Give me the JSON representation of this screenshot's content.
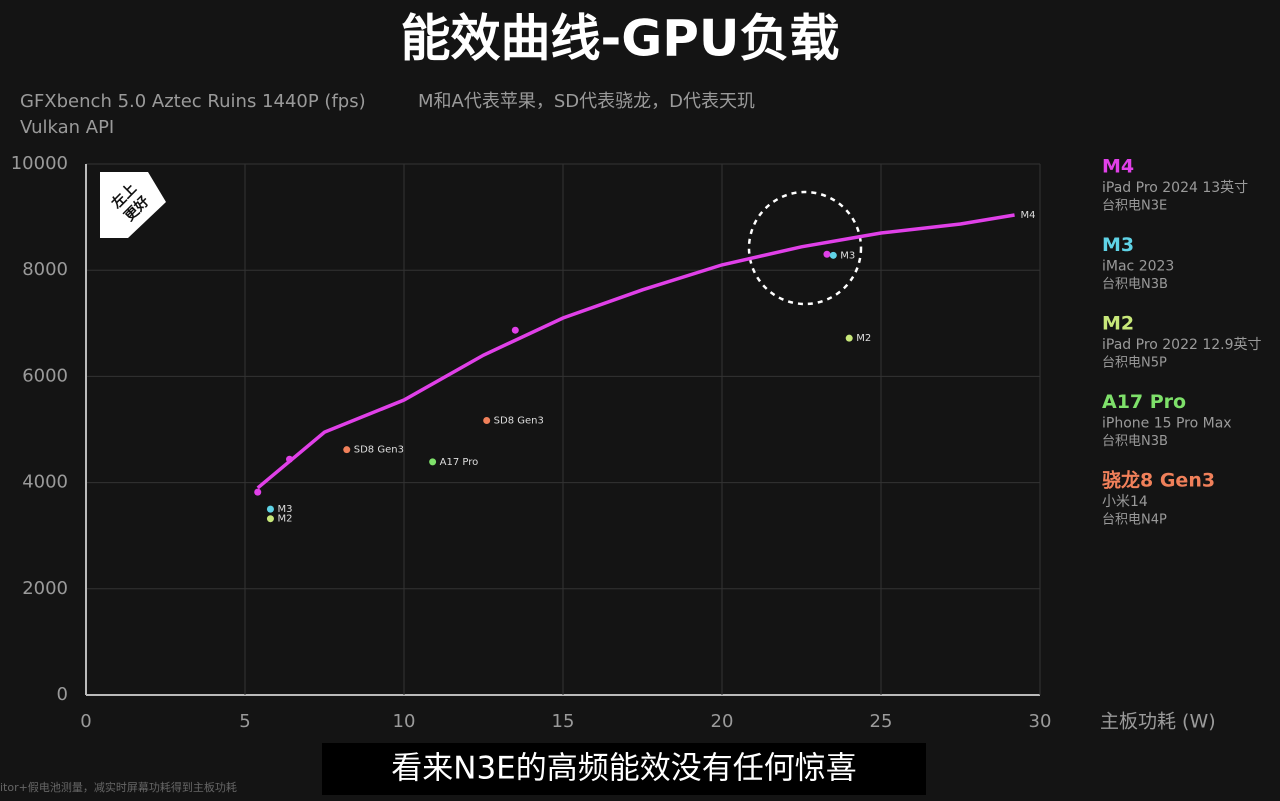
{
  "chart_data": {
    "type": "scatter",
    "title": "能效曲线-GPU负载",
    "subtitle": "GFXbench 5.0 Aztec Ruins 1440P (fps)",
    "note": "M和A代表苹果，SD代表骁龙，D代表天玑",
    "subtitle2": "Vulkan API",
    "x_label": "主板功耗 (W)",
    "badge": [
      "左上",
      "更好"
    ],
    "xlim": [
      0,
      30
    ],
    "xticks": [
      0,
      5,
      10,
      15,
      20,
      25,
      30
    ],
    "ylim": [
      0,
      10000
    ],
    "yticks": [
      0,
      2000,
      4000,
      6000,
      8000,
      10000
    ],
    "grid": true,
    "series": [
      {
        "name": "M4",
        "color": "#e040e8",
        "device": "iPad Pro 2024 13英寸",
        "process": "台积电N3E",
        "x": [
          5.4,
          6.4,
          13.5,
          23.3
        ],
        "values": [
          3820,
          4440,
          6870,
          8300
        ],
        "point_labels": [
          null,
          null,
          null,
          null
        ],
        "curve": {
          "label": "M4",
          "x": [
            5.4,
            7.5,
            10,
            12.5,
            15,
            17.5,
            20,
            22.5,
            25,
            27.5,
            29.2
          ],
          "values": [
            3900,
            4950,
            5555,
            6400,
            7100,
            7630,
            8100,
            8440,
            8700,
            8870,
            9040
          ]
        }
      },
      {
        "name": "M3",
        "color": "#5fd3e6",
        "device": "iMac 2023",
        "process": "台积电N3B",
        "x": [
          5.8,
          23.5
        ],
        "values": [
          3500,
          8280
        ],
        "point_labels": [
          "M3",
          "M3"
        ]
      },
      {
        "name": "M2",
        "color": "#c8e87a",
        "device": "iPad Pro 2022 12.9英寸",
        "process": "台积电N5P",
        "x": [
          5.8,
          24
        ],
        "values": [
          3320,
          6720
        ],
        "point_labels": [
          "M2",
          "M2"
        ]
      },
      {
        "name": "A17 Pro",
        "color": "#7ee06a",
        "device": "iPhone 15 Pro Max",
        "process": "台积电N3B",
        "x": [
          10.9
        ],
        "values": [
          4390
        ],
        "point_labels": [
          "A17 Pro"
        ]
      },
      {
        "name": "骁龙8 Gen3",
        "color": "#f0805a",
        "device": "小米14",
        "process": "台积电N4P",
        "x": [
          8.2,
          12.6
        ],
        "values": [
          4620,
          5170
        ],
        "point_labels": [
          "SD8 Gen3",
          "SD8 Gen3"
        ]
      }
    ]
  },
  "caption": "看来N3E的高频能效没有任何惊喜",
  "footnote": "itor+假电池测量，减实时屏幕功耗得到主板功耗"
}
